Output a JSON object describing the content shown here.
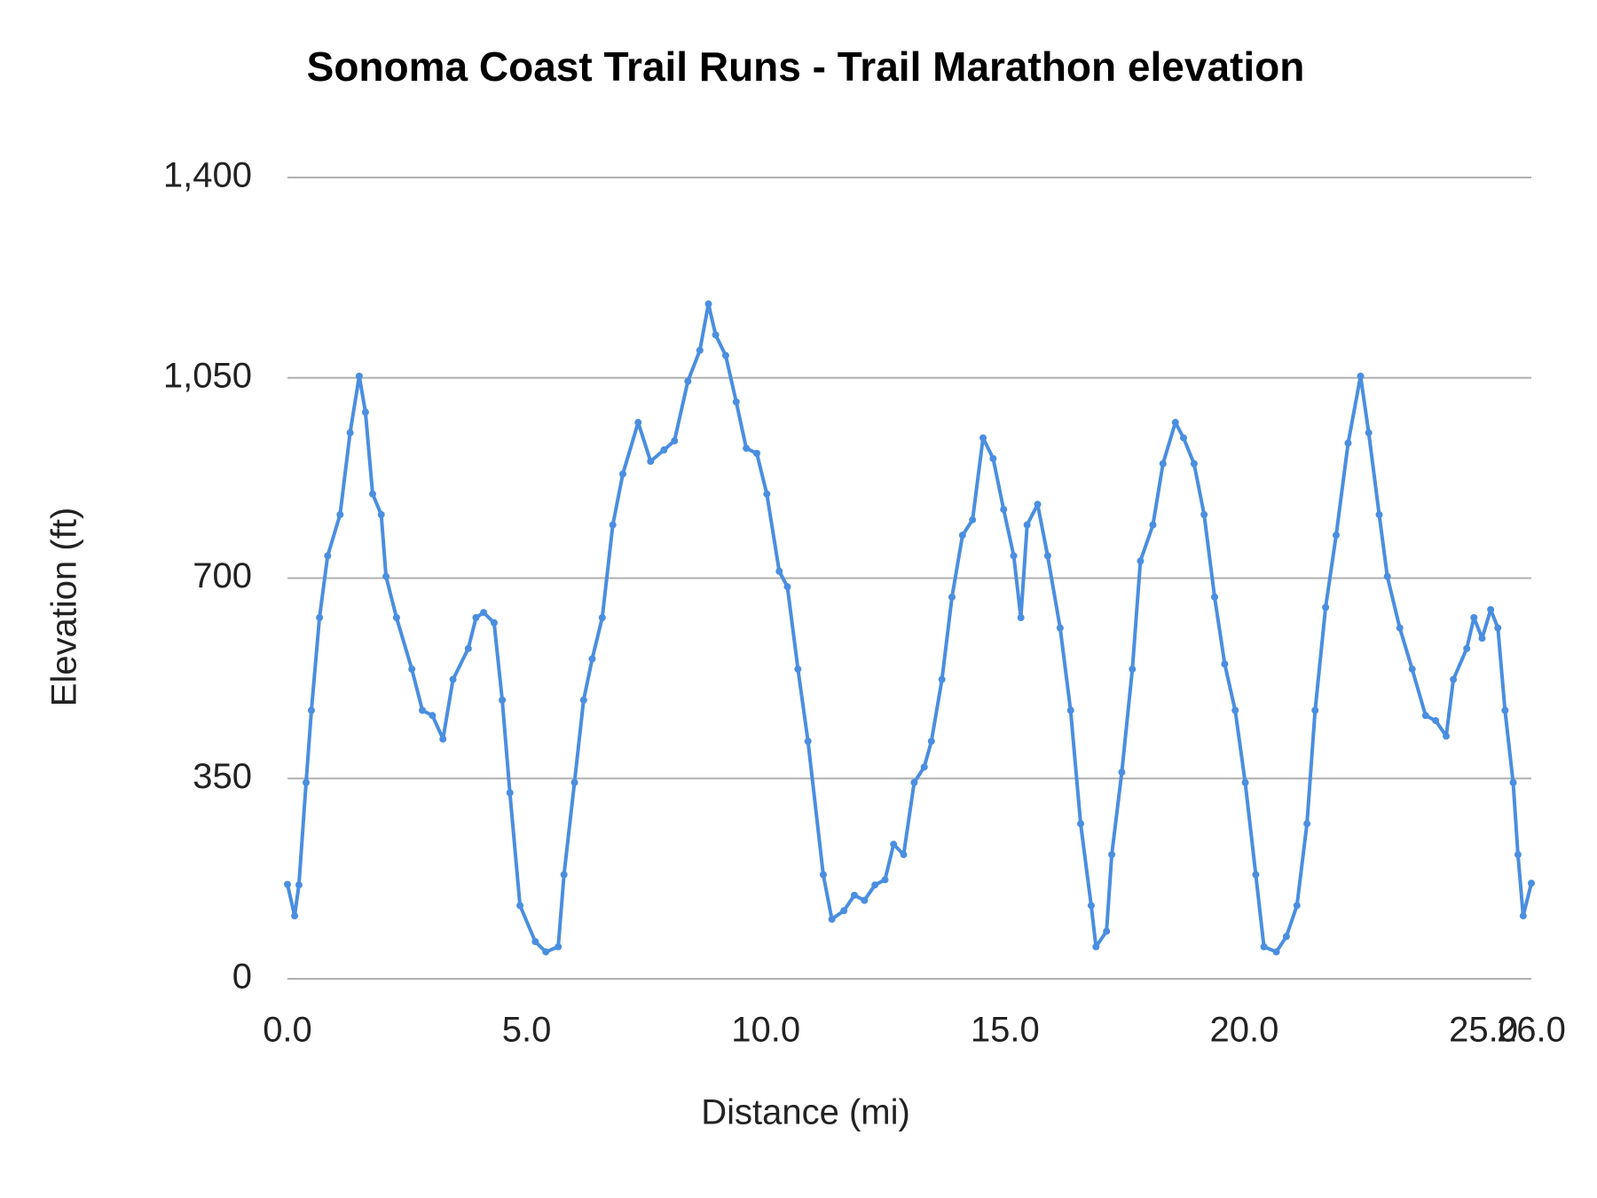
{
  "chart_data": {
    "type": "line",
    "title": "Sonoma Coast Trail Runs - Trail Marathon elevation",
    "x_label": "Distance (mi)",
    "y_label": "Elevation (ft)",
    "color": "#4a8ee0",
    "grid": true,
    "markers": true,
    "x": [
      0,
      0.15,
      0.24,
      0.39,
      0.5,
      0.67,
      0.84,
      1.1,
      1.31,
      1.5,
      1.63,
      1.78,
      1.96,
      2.06,
      2.28,
      2.6,
      2.82,
      3.03,
      3.25,
      3.46,
      3.78,
      3.94,
      4.1,
      4.32,
      4.49,
      4.65,
      4.86,
      5.18,
      5.4,
      5.66,
      5.78,
      6.0,
      6.19,
      6.37,
      6.58,
      6.8,
      7.01,
      7.33,
      7.59,
      7.87,
      8.09,
      8.37,
      8.62,
      8.8,
      8.95,
      9.16,
      9.38,
      9.59,
      9.81,
      10.02,
      10.28,
      10.45,
      10.67,
      10.88,
      11.2,
      11.38,
      11.63,
      11.85,
      12.06,
      12.28,
      12.49,
      12.67,
      12.88,
      13.1,
      13.31,
      13.46,
      13.68,
      13.89,
      14.11,
      14.32,
      14.54,
      14.75,
      14.97,
      15.18,
      15.33,
      15.46,
      15.68,
      15.89,
      16.15,
      16.37,
      16.58,
      16.8,
      16.9,
      17.12,
      17.23,
      17.44,
      17.66,
      17.83,
      18.09,
      18.3,
      18.56,
      18.73,
      18.95,
      19.16,
      19.38,
      19.59,
      19.81,
      20.02,
      20.24,
      20.41,
      20.67,
      20.88,
      21.1,
      21.31,
      21.48,
      21.7,
      21.92,
      22.17,
      22.43,
      22.6,
      22.82,
      22.99,
      23.25,
      23.51,
      23.79,
      24.0,
      24.22,
      24.37,
      24.65,
      24.8,
      24.97,
      25.15,
      25.3,
      25.45,
      25.62,
      25.72,
      25.83,
      26.0
    ],
    "values": [
      165,
      110,
      164,
      343,
      469,
      631,
      739,
      811,
      954,
      1053,
      990,
      847,
      811,
      703,
      631,
      541,
      469,
      460,
      419,
      523,
      577,
      631,
      640,
      622,
      487,
      325,
      128,
      65,
      47,
      56,
      182,
      343,
      487,
      559,
      631,
      793,
      882,
      972,
      904,
      924,
      940,
      1044,
      1098,
      1179,
      1125,
      1089,
      1008,
      927,
      918,
      847,
      712,
      685,
      541,
      415,
      182,
      104,
      119,
      146,
      137,
      164,
      173,
      235,
      217,
      343,
      370,
      415,
      523,
      667,
      775,
      802,
      945,
      909,
      820,
      739,
      631,
      793,
      829,
      739,
      613,
      469,
      271,
      128,
      56,
      83,
      217,
      361,
      541,
      730,
      793,
      900,
      972,
      945,
      900,
      811,
      667,
      550,
      469,
      343,
      182,
      56,
      47,
      74,
      128,
      271,
      469,
      649,
      775,
      936,
      1053,
      954,
      811,
      703,
      613,
      541,
      460,
      451,
      424,
      523,
      577,
      631,
      595,
      645,
      613,
      469,
      343,
      217,
      110,
      167
    ],
    "xlim": [
      0,
      26
    ],
    "ylim": [
      0,
      1400
    ],
    "xticks": [
      {
        "value": 0,
        "label": "0.0"
      },
      {
        "value": 5,
        "label": "5.0"
      },
      {
        "value": 10,
        "label": "10.0"
      },
      {
        "value": 15,
        "label": "15.0"
      },
      {
        "value": 20,
        "label": "20.0"
      },
      {
        "value": 25,
        "label": "25.0"
      },
      {
        "value": 26,
        "label": "26.0"
      }
    ],
    "yticks": [
      0,
      350,
      700,
      {
        "value": 1050,
        "label": "1,050"
      },
      {
        "value": 1400,
        "label": "1,400"
      }
    ]
  }
}
